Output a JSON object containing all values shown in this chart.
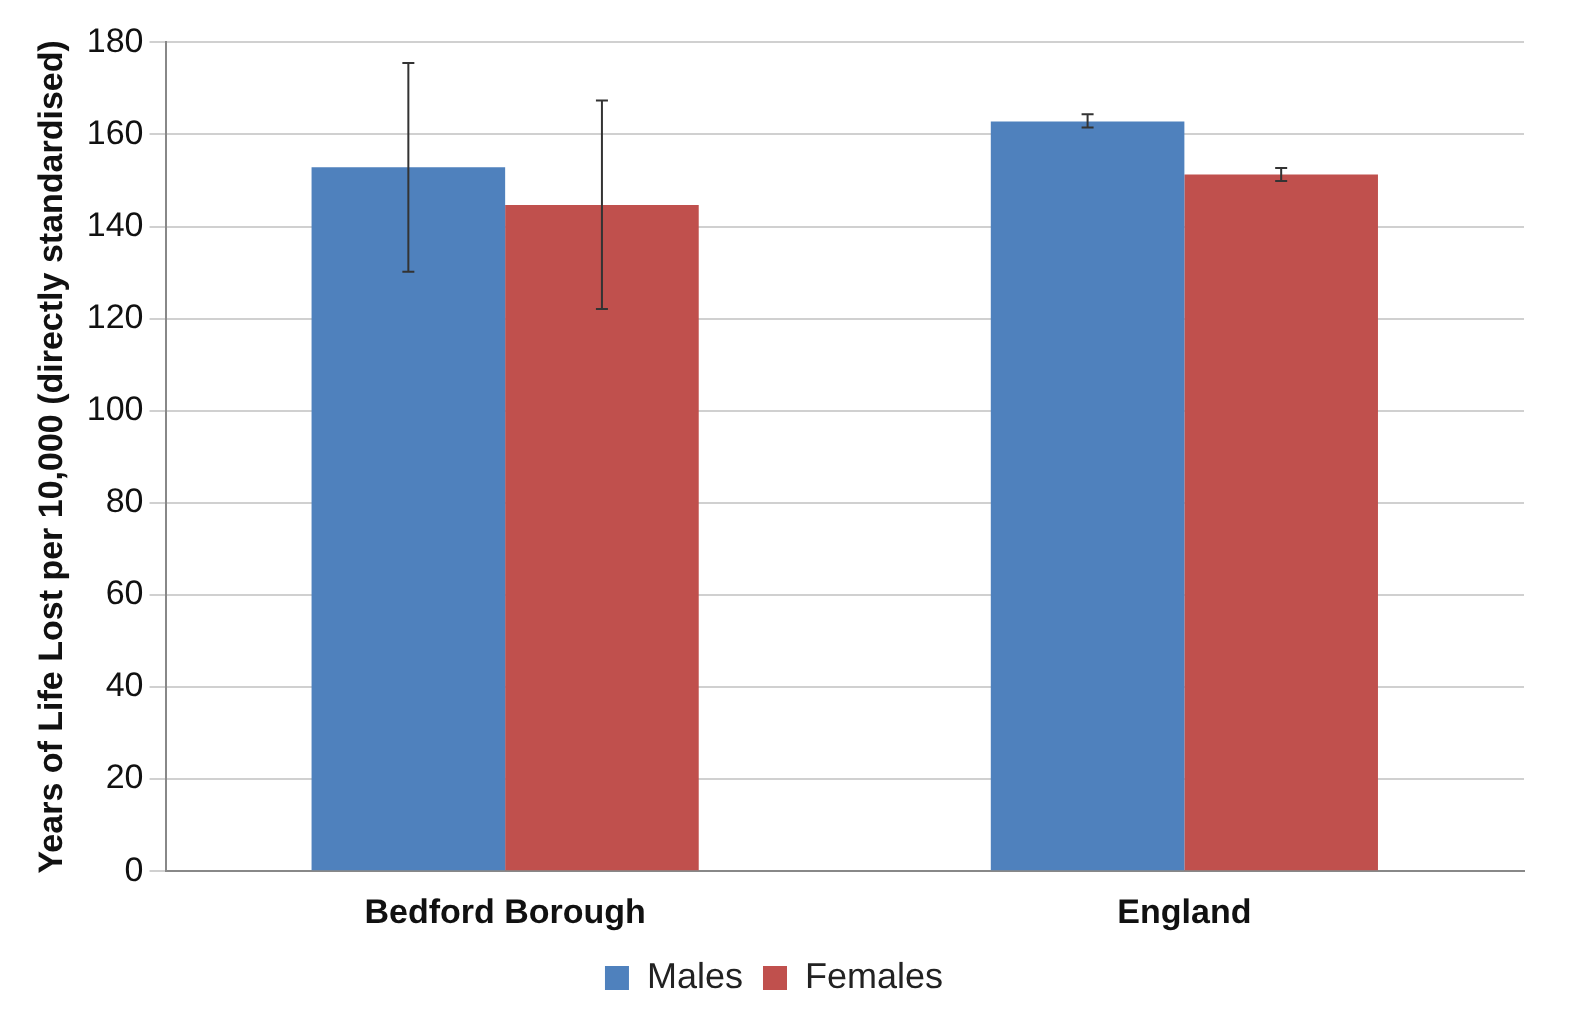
{
  "chart_data": {
    "type": "bar",
    "ylabel": "Years of Life Lost per 10,000 (directly standardised)",
    "categories": [
      "Bedford Borough",
      "England"
    ],
    "series": [
      {
        "name": "Males",
        "color": "#4f81bd",
        "values": [
          152.9,
          162.8
        ],
        "errors": [
          [
            130.2,
            175.5
          ],
          [
            161.5,
            164.4
          ]
        ]
      },
      {
        "name": "Females",
        "color": "#c0504d",
        "values": [
          144.7,
          151.3
        ],
        "errors": [
          [
            122.1,
            167.4
          ],
          [
            149.9,
            152.7
          ]
        ]
      }
    ],
    "ylim": [
      0,
      180
    ],
    "yticks": [
      0,
      20,
      40,
      60,
      80,
      100,
      120,
      140,
      160,
      180
    ],
    "grid": "y",
    "legend": "bottom"
  }
}
